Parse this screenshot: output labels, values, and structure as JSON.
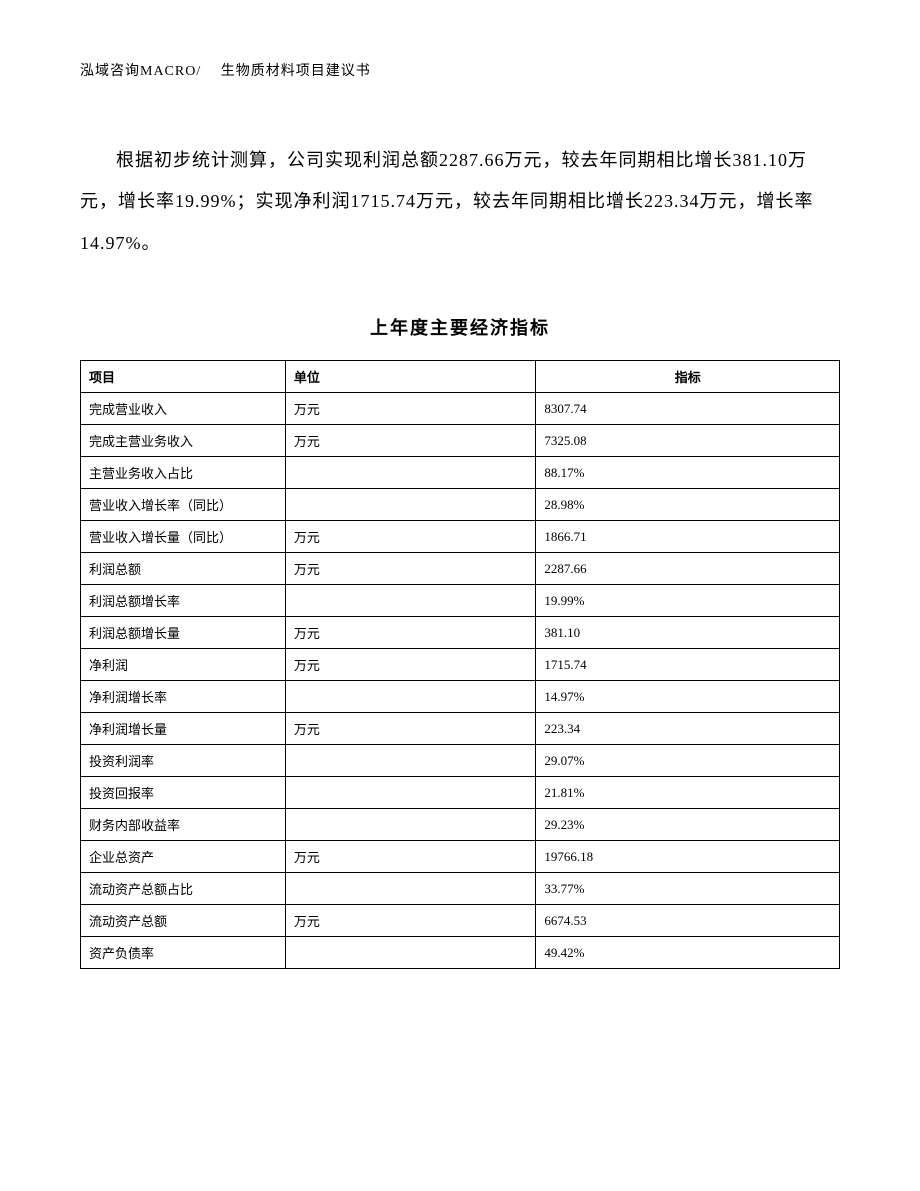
{
  "header": {
    "text": "泓域咨询MACRO/　 生物质材料项目建议书"
  },
  "paragraph": {
    "text": "根据初步统计测算，公司实现利润总额2287.66万元，较去年同期相比增长381.10万元，增长率19.99%；实现净利润1715.74万元，较去年同期相比增长223.34万元，增长率14.97%。"
  },
  "table": {
    "title": "上年度主要经济指标",
    "headers": {
      "col1": "项目",
      "col2": "单位",
      "col3": "指标"
    },
    "rows": [
      {
        "c1": "完成营业收入",
        "c2": "万元",
        "c3": "8307.74"
      },
      {
        "c1": "完成主营业务收入",
        "c2": "万元",
        "c3": "7325.08"
      },
      {
        "c1": "主营业务收入占比",
        "c2": "",
        "c3": "88.17%"
      },
      {
        "c1": "营业收入增长率（同比）",
        "c2": "",
        "c3": "28.98%"
      },
      {
        "c1": "营业收入增长量（同比）",
        "c2": "万元",
        "c3": "1866.71"
      },
      {
        "c1": "利润总额",
        "c2": "万元",
        "c3": "2287.66"
      },
      {
        "c1": "利润总额增长率",
        "c2": "",
        "c3": "19.99%"
      },
      {
        "c1": "利润总额增长量",
        "c2": "万元",
        "c3": "381.10"
      },
      {
        "c1": "净利润",
        "c2": "万元",
        "c3": "1715.74"
      },
      {
        "c1": "净利润增长率",
        "c2": "",
        "c3": "14.97%"
      },
      {
        "c1": "净利润增长量",
        "c2": "万元",
        "c3": "223.34"
      },
      {
        "c1": "投资利润率",
        "c2": "",
        "c3": "29.07%"
      },
      {
        "c1": "投资回报率",
        "c2": "",
        "c3": "21.81%"
      },
      {
        "c1": "财务内部收益率",
        "c2": "",
        "c3": "29.23%"
      },
      {
        "c1": "企业总资产",
        "c2": "万元",
        "c3": "19766.18"
      },
      {
        "c1": "流动资产总额占比",
        "c2": "",
        "c3": "33.77%"
      },
      {
        "c1": "流动资产总额",
        "c2": "万元",
        "c3": "6674.53"
      },
      {
        "c1": "资产负债率",
        "c2": "",
        "c3": "49.42%"
      }
    ]
  }
}
